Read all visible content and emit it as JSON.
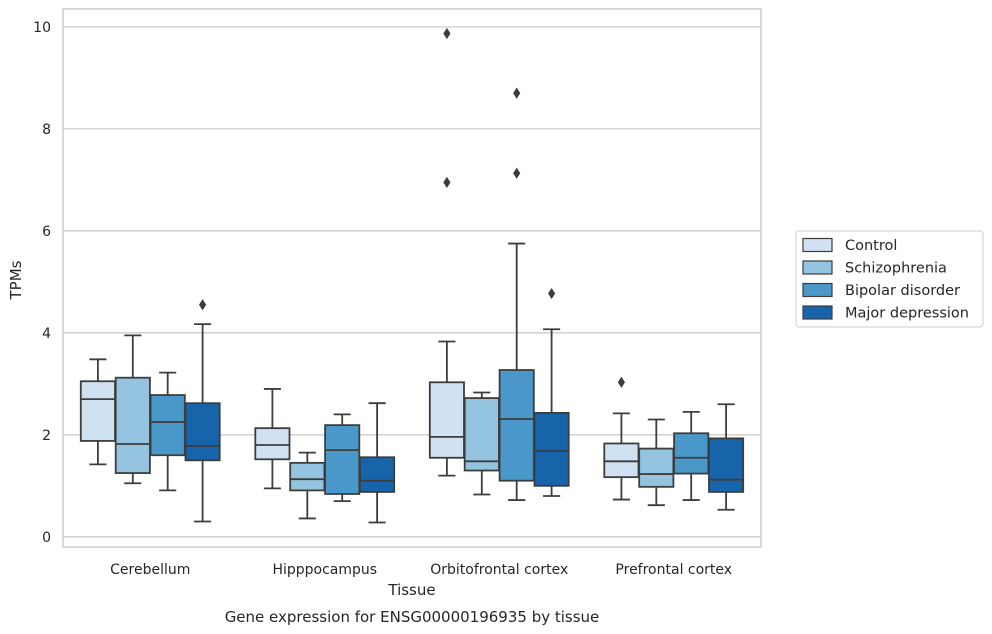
{
  "chart_data": {
    "type": "box",
    "title": "Gene expression for ENSG00000196935 by tissue",
    "xlabel": "Tissue",
    "ylabel": "TPMs",
    "ylim": [
      -0.2,
      10.35
    ],
    "yticks": [
      0,
      2,
      4,
      6,
      8,
      10
    ],
    "grid": "horizontal",
    "legend_position": "right",
    "categories": [
      "Cerebellum",
      "Hipppocampus",
      "Orbitofrontal cortex",
      "Prefrontal cortex"
    ],
    "series": [
      {
        "name": "Control",
        "color": "#d0e1f2",
        "boxes": [
          {
            "whislo": 1.42,
            "q1": 1.88,
            "med": 2.7,
            "q3": 3.05,
            "whishi": 3.48,
            "fliers": []
          },
          {
            "whislo": 0.95,
            "q1": 1.52,
            "med": 1.8,
            "q3": 2.13,
            "whishi": 2.9,
            "fliers": []
          },
          {
            "whislo": 1.2,
            "q1": 1.55,
            "med": 1.96,
            "q3": 3.03,
            "whishi": 3.83,
            "fliers": [
              6.95,
              9.87
            ]
          },
          {
            "whislo": 0.73,
            "q1": 1.17,
            "med": 1.48,
            "q3": 1.83,
            "whishi": 2.42,
            "fliers": [
              3.03
            ]
          }
        ]
      },
      {
        "name": "Schizophrenia",
        "color": "#94c4df",
        "boxes": [
          {
            "whislo": 1.05,
            "q1": 1.25,
            "med": 1.82,
            "q3": 3.12,
            "whishi": 3.95,
            "fliers": []
          },
          {
            "whislo": 0.36,
            "q1": 0.91,
            "med": 1.13,
            "q3": 1.45,
            "whishi": 1.65,
            "fliers": []
          },
          {
            "whislo": 0.83,
            "q1": 1.3,
            "med": 1.48,
            "q3": 2.72,
            "whishi": 2.83,
            "fliers": []
          },
          {
            "whislo": 0.62,
            "q1": 0.98,
            "med": 1.23,
            "q3": 1.73,
            "whishi": 2.3,
            "fliers": []
          }
        ]
      },
      {
        "name": "Bipolar disorder",
        "color": "#4a98c9",
        "boxes": [
          {
            "whislo": 0.91,
            "q1": 1.6,
            "med": 2.25,
            "q3": 2.78,
            "whishi": 3.22,
            "fliers": []
          },
          {
            "whislo": 0.7,
            "q1": 0.84,
            "med": 1.7,
            "q3": 2.19,
            "whishi": 2.4,
            "fliers": []
          },
          {
            "whislo": 0.72,
            "q1": 1.1,
            "med": 2.31,
            "q3": 3.27,
            "whishi": 5.75,
            "fliers": [
              7.13,
              8.7
            ]
          },
          {
            "whislo": 0.72,
            "q1": 1.24,
            "med": 1.55,
            "q3": 2.03,
            "whishi": 2.45,
            "fliers": []
          }
        ]
      },
      {
        "name": "Major depression",
        "color": "#1764ab",
        "boxes": [
          {
            "whislo": 0.3,
            "q1": 1.5,
            "med": 1.78,
            "q3": 2.62,
            "whishi": 4.17,
            "fliers": [
              4.55
            ]
          },
          {
            "whislo": 0.28,
            "q1": 0.88,
            "med": 1.1,
            "q3": 1.56,
            "whishi": 2.62,
            "fliers": []
          },
          {
            "whislo": 0.8,
            "q1": 1.0,
            "med": 1.68,
            "q3": 2.43,
            "whishi": 4.07,
            "fliers": [
              4.77
            ]
          },
          {
            "whislo": 0.53,
            "q1": 0.88,
            "med": 1.12,
            "q3": 1.93,
            "whishi": 2.6,
            "fliers": []
          }
        ]
      }
    ]
  }
}
